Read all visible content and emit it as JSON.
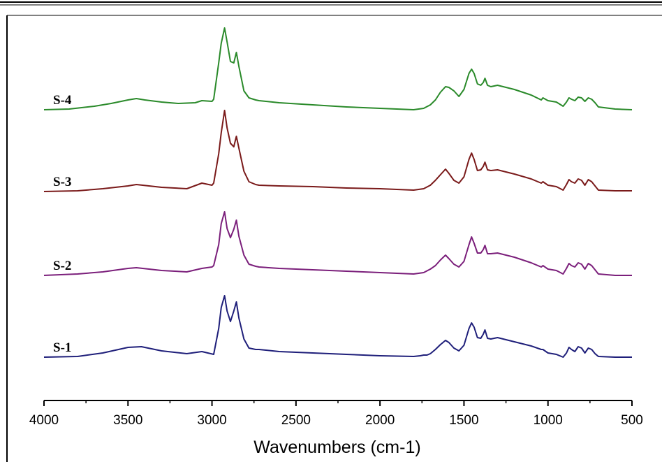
{
  "chart_data": {
    "type": "line",
    "title": "",
    "xlabel": "Wavenumbers (cm-1)",
    "ylabel": "",
    "xlim": [
      4000,
      500
    ],
    "x_reversed": true,
    "x_ticks": [
      4000,
      3500,
      3000,
      2500,
      2000,
      1500,
      1000,
      500
    ],
    "grid": false,
    "y_axis_visible": false,
    "series": [
      {
        "name": "S-1",
        "color": "#1f1f7a",
        "points": [
          [
            4000,
            511
          ],
          [
            3800,
            510
          ],
          [
            3650,
            505
          ],
          [
            3500,
            497
          ],
          [
            3420,
            496
          ],
          [
            3300,
            502
          ],
          [
            3150,
            506
          ],
          [
            3060,
            503
          ],
          [
            2990,
            507
          ],
          [
            2960,
            470
          ],
          [
            2945,
            440
          ],
          [
            2925,
            423
          ],
          [
            2910,
            445
          ],
          [
            2890,
            460
          ],
          [
            2870,
            445
          ],
          [
            2855,
            432
          ],
          [
            2840,
            455
          ],
          [
            2810,
            485
          ],
          [
            2780,
            498
          ],
          [
            2740,
            500
          ],
          [
            2720,
            500
          ],
          [
            2600,
            503
          ],
          [
            2400,
            505
          ],
          [
            2200,
            507
          ],
          [
            2000,
            509
          ],
          [
            1800,
            510
          ],
          [
            1760,
            509
          ],
          [
            1740,
            508
          ],
          [
            1720,
            508
          ],
          [
            1700,
            506
          ],
          [
            1670,
            500
          ],
          [
            1640,
            493
          ],
          [
            1610,
            487
          ],
          [
            1590,
            490
          ],
          [
            1560,
            498
          ],
          [
            1530,
            502
          ],
          [
            1500,
            494
          ],
          [
            1470,
            470
          ],
          [
            1455,
            462
          ],
          [
            1440,
            468
          ],
          [
            1420,
            483
          ],
          [
            1400,
            484
          ],
          [
            1385,
            478
          ],
          [
            1375,
            472
          ],
          [
            1360,
            484
          ],
          [
            1340,
            485
          ],
          [
            1300,
            483
          ],
          [
            1200,
            489
          ],
          [
            1100,
            495
          ],
          [
            1040,
            500
          ],
          [
            1030,
            500
          ],
          [
            1000,
            505
          ],
          [
            950,
            507
          ],
          [
            910,
            511
          ],
          [
            890,
            505
          ],
          [
            875,
            497
          ],
          [
            860,
            500
          ],
          [
            840,
            503
          ],
          [
            820,
            496
          ],
          [
            800,
            498
          ],
          [
            780,
            505
          ],
          [
            760,
            498
          ],
          [
            740,
            500
          ],
          [
            720,
            506
          ],
          [
            700,
            510
          ],
          [
            600,
            511
          ],
          [
            500,
            511
          ]
        ]
      },
      {
        "name": "S-2",
        "color": "#7b1f7b",
        "points": [
          [
            4000,
            394
          ],
          [
            3800,
            392
          ],
          [
            3650,
            389
          ],
          [
            3500,
            384
          ],
          [
            3450,
            383
          ],
          [
            3300,
            387
          ],
          [
            3150,
            389
          ],
          [
            3060,
            384
          ],
          [
            3000,
            382
          ],
          [
            2990,
            380
          ],
          [
            2960,
            350
          ],
          [
            2945,
            320
          ],
          [
            2925,
            303
          ],
          [
            2910,
            327
          ],
          [
            2890,
            340
          ],
          [
            2870,
            328
          ],
          [
            2855,
            315
          ],
          [
            2840,
            338
          ],
          [
            2810,
            365
          ],
          [
            2780,
            378
          ],
          [
            2740,
            381
          ],
          [
            2720,
            382
          ],
          [
            2600,
            384
          ],
          [
            2400,
            386
          ],
          [
            2200,
            388
          ],
          [
            2000,
            390
          ],
          [
            1800,
            392
          ],
          [
            1740,
            390
          ],
          [
            1700,
            385
          ],
          [
            1670,
            380
          ],
          [
            1640,
            372
          ],
          [
            1610,
            365
          ],
          [
            1590,
            370
          ],
          [
            1560,
            378
          ],
          [
            1530,
            382
          ],
          [
            1500,
            374
          ],
          [
            1470,
            350
          ],
          [
            1455,
            339
          ],
          [
            1440,
            348
          ],
          [
            1420,
            362
          ],
          [
            1400,
            362
          ],
          [
            1385,
            357
          ],
          [
            1375,
            351
          ],
          [
            1360,
            363
          ],
          [
            1340,
            363
          ],
          [
            1300,
            362
          ],
          [
            1200,
            368
          ],
          [
            1100,
            376
          ],
          [
            1040,
            382
          ],
          [
            1030,
            380
          ],
          [
            1000,
            385
          ],
          [
            950,
            387
          ],
          [
            910,
            392
          ],
          [
            890,
            384
          ],
          [
            875,
            377
          ],
          [
            860,
            380
          ],
          [
            840,
            382
          ],
          [
            820,
            376
          ],
          [
            800,
            378
          ],
          [
            780,
            385
          ],
          [
            760,
            377
          ],
          [
            740,
            380
          ],
          [
            720,
            386
          ],
          [
            700,
            392
          ],
          [
            600,
            394
          ],
          [
            500,
            394
          ]
        ]
      },
      {
        "name": "S-3",
        "color": "#7a1a1a",
        "points": [
          [
            4000,
            274
          ],
          [
            3800,
            273
          ],
          [
            3650,
            270
          ],
          [
            3500,
            266
          ],
          [
            3450,
            264
          ],
          [
            3300,
            268
          ],
          [
            3150,
            270
          ],
          [
            3060,
            262
          ],
          [
            3000,
            265
          ],
          [
            2990,
            262
          ],
          [
            2960,
            220
          ],
          [
            2945,
            190
          ],
          [
            2925,
            158
          ],
          [
            2910,
            183
          ],
          [
            2890,
            205
          ],
          [
            2870,
            210
          ],
          [
            2855,
            195
          ],
          [
            2840,
            212
          ],
          [
            2810,
            245
          ],
          [
            2780,
            260
          ],
          [
            2740,
            264
          ],
          [
            2720,
            265
          ],
          [
            2600,
            266
          ],
          [
            2400,
            267
          ],
          [
            2200,
            269
          ],
          [
            2000,
            270
          ],
          [
            1800,
            272
          ],
          [
            1740,
            270
          ],
          [
            1700,
            265
          ],
          [
            1670,
            258
          ],
          [
            1640,
            250
          ],
          [
            1610,
            242
          ],
          [
            1590,
            248
          ],
          [
            1560,
            258
          ],
          [
            1530,
            262
          ],
          [
            1500,
            253
          ],
          [
            1470,
            228
          ],
          [
            1455,
            219
          ],
          [
            1440,
            228
          ],
          [
            1420,
            244
          ],
          [
            1400,
            243
          ],
          [
            1385,
            238
          ],
          [
            1375,
            232
          ],
          [
            1360,
            243
          ],
          [
            1340,
            244
          ],
          [
            1300,
            243
          ],
          [
            1200,
            249
          ],
          [
            1100,
            256
          ],
          [
            1040,
            262
          ],
          [
            1030,
            260
          ],
          [
            1000,
            265
          ],
          [
            950,
            267
          ],
          [
            910,
            272
          ],
          [
            890,
            264
          ],
          [
            875,
            257
          ],
          [
            860,
            260
          ],
          [
            840,
            262
          ],
          [
            820,
            256
          ],
          [
            800,
            258
          ],
          [
            780,
            265
          ],
          [
            760,
            257
          ],
          [
            740,
            260
          ],
          [
            720,
            266
          ],
          [
            700,
            272
          ],
          [
            600,
            273
          ],
          [
            500,
            273
          ]
        ]
      },
      {
        "name": "S-4",
        "color": "#2a8a2a",
        "points": [
          [
            4000,
            157
          ],
          [
            3850,
            156
          ],
          [
            3700,
            152
          ],
          [
            3600,
            148
          ],
          [
            3500,
            143
          ],
          [
            3450,
            141
          ],
          [
            3400,
            143
          ],
          [
            3300,
            146
          ],
          [
            3200,
            148
          ],
          [
            3100,
            147
          ],
          [
            3060,
            144
          ],
          [
            3000,
            145
          ],
          [
            2990,
            142
          ],
          [
            2960,
            90
          ],
          [
            2945,
            62
          ],
          [
            2925,
            40
          ],
          [
            2910,
            60
          ],
          [
            2890,
            88
          ],
          [
            2870,
            90
          ],
          [
            2855,
            75
          ],
          [
            2840,
            95
          ],
          [
            2810,
            130
          ],
          [
            2780,
            140
          ],
          [
            2740,
            143
          ],
          [
            2720,
            144
          ],
          [
            2600,
            147
          ],
          [
            2400,
            150
          ],
          [
            2200,
            153
          ],
          [
            2000,
            155
          ],
          [
            1800,
            157
          ],
          [
            1740,
            155
          ],
          [
            1700,
            150
          ],
          [
            1670,
            143
          ],
          [
            1640,
            132
          ],
          [
            1610,
            124
          ],
          [
            1590,
            125
          ],
          [
            1560,
            130
          ],
          [
            1530,
            138
          ],
          [
            1500,
            128
          ],
          [
            1470,
            105
          ],
          [
            1455,
            99
          ],
          [
            1440,
            105
          ],
          [
            1420,
            120
          ],
          [
            1400,
            122
          ],
          [
            1385,
            118
          ],
          [
            1375,
            112
          ],
          [
            1360,
            122
          ],
          [
            1340,
            124
          ],
          [
            1300,
            122
          ],
          [
            1200,
            128
          ],
          [
            1100,
            136
          ],
          [
            1040,
            143
          ],
          [
            1030,
            140
          ],
          [
            1000,
            144
          ],
          [
            950,
            146
          ],
          [
            910,
            152
          ],
          [
            890,
            146
          ],
          [
            875,
            140
          ],
          [
            860,
            142
          ],
          [
            840,
            144
          ],
          [
            820,
            139
          ],
          [
            800,
            140
          ],
          [
            780,
            145
          ],
          [
            760,
            140
          ],
          [
            740,
            142
          ],
          [
            720,
            147
          ],
          [
            700,
            153
          ],
          [
            600,
            156
          ],
          [
            500,
            157
          ]
        ]
      }
    ]
  }
}
